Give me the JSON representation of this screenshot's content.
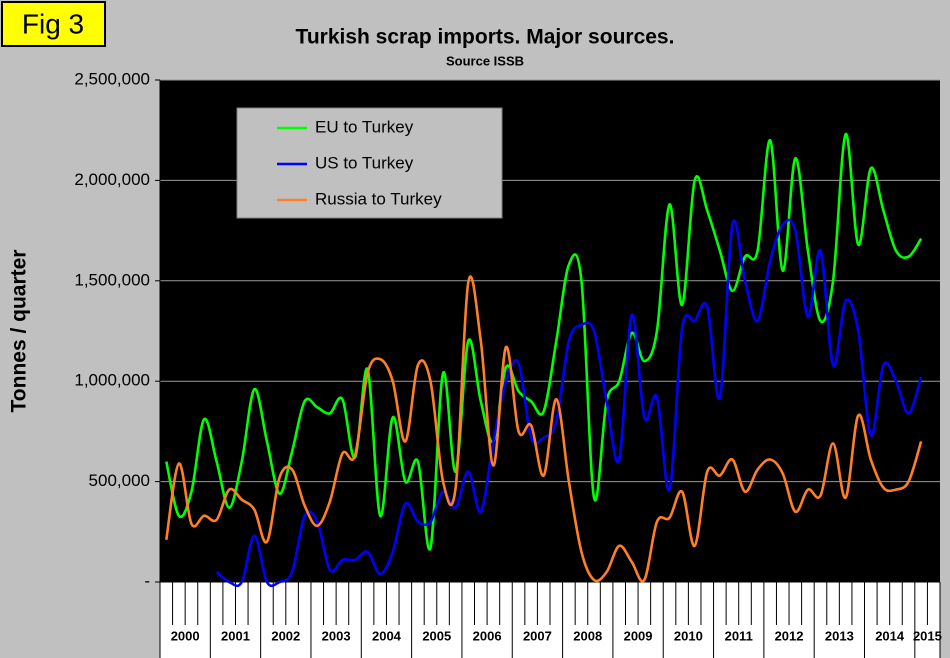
{
  "chart_data": {
    "type": "line",
    "badge": "Fig 3",
    "title": "Turkish scrap imports. Major sources.",
    "subtitle": "Source ISSB",
    "y_label": "Tonnes / quarter",
    "categories": [
      "2000",
      null,
      null,
      null,
      "2001",
      null,
      null,
      null,
      "2002",
      null,
      null,
      null,
      "2003",
      null,
      null,
      null,
      "2004",
      null,
      null,
      null,
      "2005",
      null,
      null,
      null,
      "2006",
      null,
      null,
      null,
      "2007",
      null,
      null,
      null,
      "2008",
      null,
      null,
      null,
      "2009",
      null,
      null,
      null,
      "2010",
      null,
      null,
      null,
      "2011",
      null,
      null,
      null,
      "2012",
      null,
      null,
      null,
      "2013",
      null,
      null,
      null,
      "2014",
      null,
      null,
      null,
      "2015",
      null
    ],
    "series": [
      {
        "name": "EU to Turkey",
        "color": "#00ff00",
        "values": [
          600000,
          330000,
          450000,
          810000,
          600000,
          370000,
          600000,
          960000,
          700000,
          440000,
          650000,
          900000,
          870000,
          840000,
          910000,
          620000,
          1060000,
          330000,
          820000,
          500000,
          600000,
          170000,
          1040000,
          550000,
          1200000,
          900000,
          700000,
          1070000,
          950000,
          900000,
          850000,
          1200000,
          1580000,
          1500000,
          420000,
          900000,
          1000000,
          1240000,
          1100000,
          1250000,
          1880000,
          1380000,
          2000000,
          1850000,
          1650000,
          1450000,
          1620000,
          1650000,
          2200000,
          1550000,
          2110000,
          1650000,
          1300000,
          1500000,
          2230000,
          1680000,
          2060000,
          1850000,
          1650000,
          1620000,
          1710000,
          null
        ]
      },
      {
        "name": "US to Turkey",
        "color": "#0000ff",
        "values": [
          null,
          null,
          null,
          null,
          50000,
          0,
          0,
          230000,
          0,
          0,
          50000,
          330000,
          300000,
          60000,
          110000,
          110000,
          150000,
          40000,
          150000,
          390000,
          300000,
          300000,
          450000,
          370000,
          550000,
          350000,
          700000,
          1000000,
          1090000,
          720000,
          720000,
          800000,
          1200000,
          1280000,
          1250000,
          900000,
          610000,
          1330000,
          820000,
          920000,
          460000,
          1260000,
          1300000,
          1370000,
          920000,
          1780000,
          1500000,
          1300000,
          1600000,
          1780000,
          1750000,
          1320000,
          1650000,
          1080000,
          1400000,
          1250000,
          730000,
          1080000,
          1000000,
          840000,
          1020000,
          null
        ]
      },
      {
        "name": "Russia to Turkey",
        "color": "#ff7f27",
        "values": [
          210000,
          590000,
          290000,
          330000,
          310000,
          460000,
          410000,
          360000,
          200000,
          520000,
          560000,
          380000,
          280000,
          400000,
          640000,
          630000,
          1040000,
          1110000,
          1000000,
          700000,
          1080000,
          1000000,
          500000,
          470000,
          1490000,
          1200000,
          580000,
          1170000,
          750000,
          780000,
          530000,
          910000,
          500000,
          150000,
          10000,
          50000,
          180000,
          100000,
          10000,
          300000,
          320000,
          450000,
          180000,
          550000,
          530000,
          610000,
          450000,
          560000,
          610000,
          540000,
          350000,
          460000,
          430000,
          690000,
          420000,
          830000,
          610000,
          470000,
          460000,
          500000,
          700000,
          null
        ]
      }
    ],
    "ylim": [
      0,
      2500000
    ],
    "yticks": [
      {
        "value": 0,
        "label": "-"
      },
      {
        "value": 500000,
        "label": "500,000"
      },
      {
        "value": 1000000,
        "label": "1,000,000"
      },
      {
        "value": 1500000,
        "label": "1,500,000"
      },
      {
        "value": 2000000,
        "label": "2,000,000"
      },
      {
        "value": 2500000,
        "label": "2,500,000"
      }
    ],
    "grid": true,
    "legend": "upper-left"
  }
}
